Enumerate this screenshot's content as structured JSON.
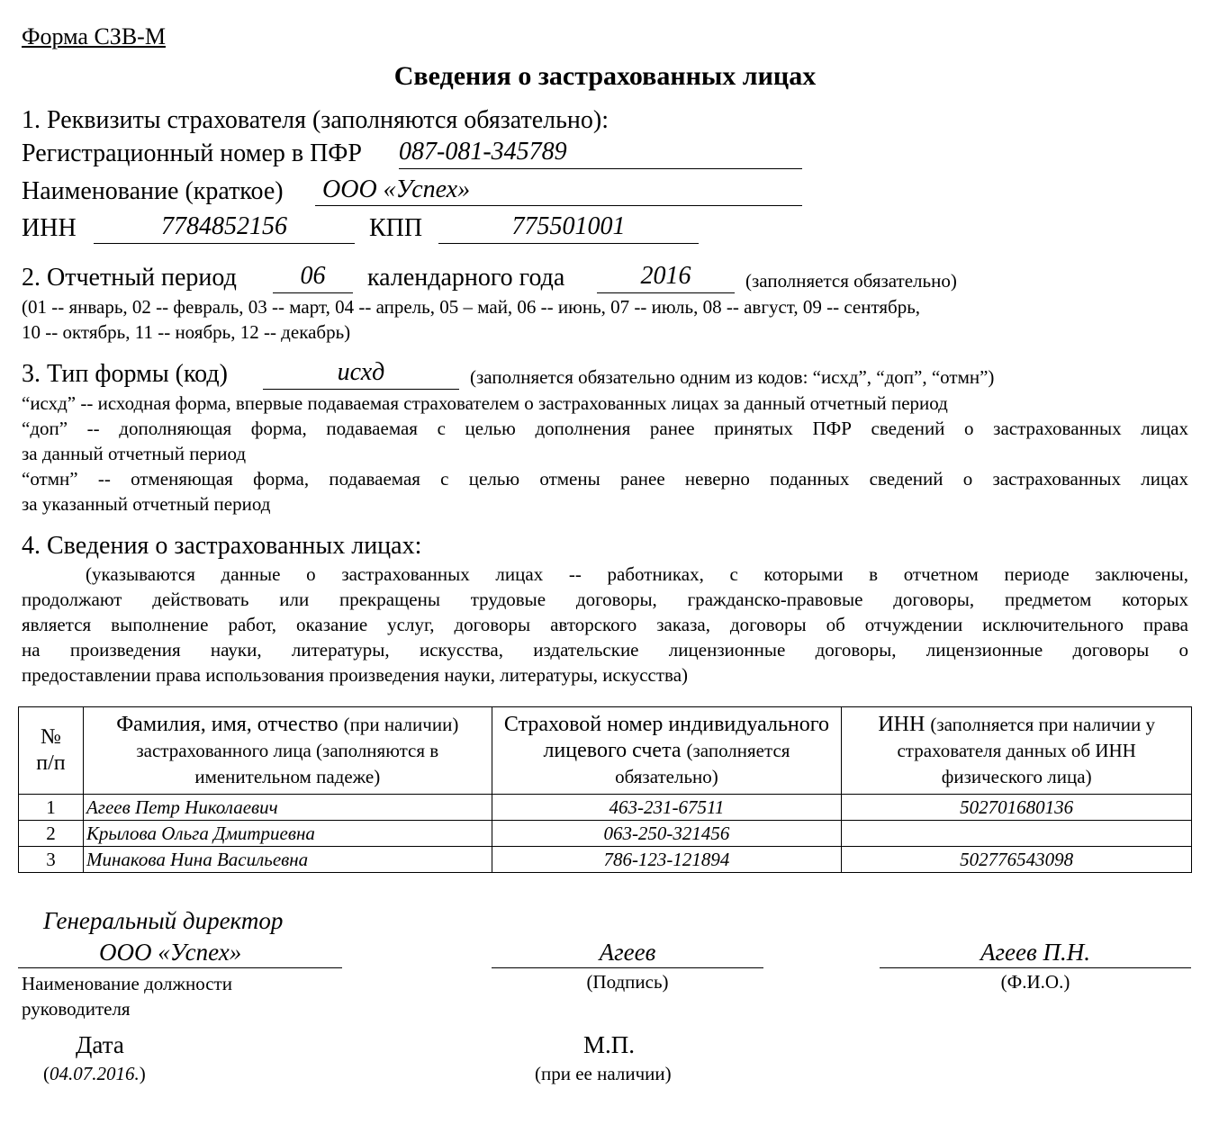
{
  "form_label": "Форма СЗВ-М",
  "title": "Сведения о застрахованных лицах",
  "section1": {
    "heading": "1. Реквизиты страхователя (заполняются обязательно):",
    "reg_label": "Регистрационный номер в ПФР",
    "reg_value": "087-081-345789",
    "name_label": "Наименование (краткое)",
    "name_value": "ООО «Успех»",
    "inn_label": "ИНН",
    "inn_value": "7784852156",
    "kpp_label": "КПП",
    "kpp_value": "775501001"
  },
  "section2": {
    "label": "2. Отчетный период",
    "period_value": "06",
    "year_label": "календарного года",
    "year_value": "2016",
    "note": "(заполняется обязательно)",
    "months_line1": "(01 -- январь, 02 -- февраль, 03 -- март, 04 -- апрель, 05 – май, 06 -- июнь, 07 -- июль, 08 -- август, 09 -- сентябрь,",
    "months_line2": "10 -- октябрь, 11 -- ноябрь, 12 -- декабрь)"
  },
  "section3": {
    "label": "3. Тип формы (код)",
    "value": "исхд",
    "note": "(заполняется обязательно одним из кодов: “исхд”, “доп”, “отмн”)",
    "lines": [
      "“исхд” -- исходная форма, впервые подаваемая страхователем о застрахованных лицах за данный отчетный период",
      "“доп” -- дополняющая форма, подаваемая с целью дополнения ранее принятых ПФР сведений о застрахованных лицах",
      "за данный отчетный период",
      "“отмн” -- отменяющая форма, подаваемая с целью отмены ранее неверно поданных сведений о застрахованных лицах",
      "за указанный отчетный период"
    ]
  },
  "section4": {
    "heading": "4. Сведения о застрахованных лицах:",
    "lines": [
      "(указываются данные о застрахованных лицах -- работниках, с которыми в отчетном периоде заключены,",
      "продолжают действовать или прекращены трудовые договоры, гражданско-правовые договоры, предметом которых",
      "является выполнение работ, оказание услуг, договоры авторского заказа, договоры об отчуждении исключительного права",
      "на произведения науки, литературы, искусства, издательские лицензионные договоры, лицензионные договоры о",
      "предоставлении права использования произведения науки, литературы, искусства)"
    ]
  },
  "table": {
    "headers": [
      {
        "main": "№ п/п",
        "note": ""
      },
      {
        "main": "Фамилия, имя, отчество",
        "note": "(при наличии) застрахованного лица (заполняются в именительном падеже)"
      },
      {
        "main": "Страховой номер индивидуального лицевого счета",
        "note": "(заполняется обязательно)"
      },
      {
        "main": "ИНН",
        "note": "(заполняется при наличии у страхователя данных об ИНН физического лица)"
      }
    ],
    "rows": [
      {
        "num": "1",
        "name": "Агеев Петр Николаевич",
        "snils": "463-231-67511",
        "inn": "502701680136"
      },
      {
        "num": "2",
        "name": "Крылова Ольга Дмитриевна",
        "snils": "063-250-321456",
        "inn": ""
      },
      {
        "num": "3",
        "name": "Минакова Нина Васильевна",
        "snils": "786-123-121894",
        "inn": "502776543098"
      }
    ]
  },
  "signature": {
    "position_line1": "Генеральный директор",
    "position_line2": "ООО «Успех»",
    "position_label": "Наименование должности руководителя",
    "signature_value": "Агеев",
    "signature_label": "(Подпись)",
    "fio_value": "Агеев П.Н.",
    "fio_label": "(Ф.И.О.)",
    "date_label": "Дата",
    "date_value": "04.07.2016.",
    "stamp_label": "М.П.",
    "stamp_note": "(при ее наличии)"
  }
}
